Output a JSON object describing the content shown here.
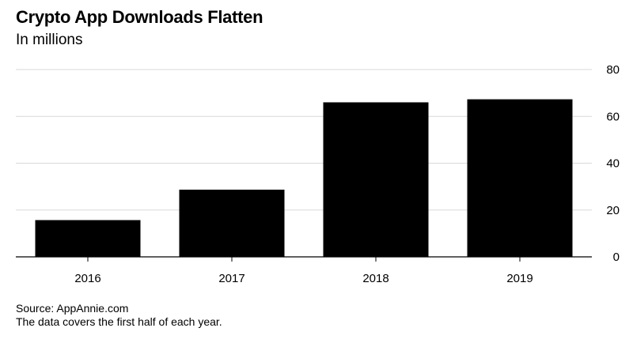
{
  "chart_data": {
    "type": "bar",
    "title": "Crypto App Downloads Flatten",
    "subtitle": "In millions",
    "categories": [
      "2016",
      "2017",
      "2018",
      "2019"
    ],
    "values": [
      15.7,
      28.7,
      66.0,
      67.3
    ],
    "xlabel": "",
    "ylabel": "",
    "ylim": [
      0,
      80
    ],
    "yticks": [
      0,
      20,
      40,
      60,
      80
    ],
    "ytick_labels": [
      "0",
      "20",
      "40",
      "60",
      "80"
    ],
    "y_axis_side": "right",
    "grid": true,
    "bar_color": "#000000"
  },
  "footer": {
    "source": "Source: AppAnnie.com",
    "note": "The data covers the first half of each year."
  }
}
